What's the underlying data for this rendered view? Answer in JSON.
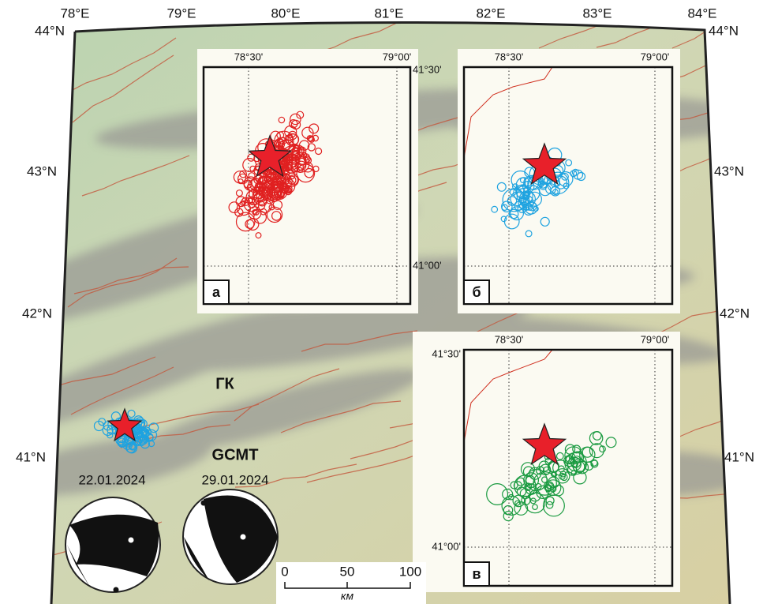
{
  "map": {
    "lon_labels": [
      "78°E",
      "79°E",
      "80°E",
      "81°E",
      "82°E",
      "83°E",
      "84°E"
    ],
    "lat_labels": [
      "44°N",
      "43°N",
      "42°N",
      "41°N"
    ],
    "inset_lon_labels": [
      "78°30'",
      "79°00'"
    ],
    "inset_lat_labels": [
      "41°30'",
      "41°00'"
    ],
    "insets": [
      {
        "letter": "а"
      },
      {
        "letter": "б"
      },
      {
        "letter": "в"
      }
    ],
    "labels": {
      "gk": "ГК",
      "gcmt": "GCMT"
    },
    "dates": [
      "22.01.2024",
      "29.01.2024"
    ],
    "scale": {
      "ticks": [
        0,
        50,
        100
      ],
      "unit": "км"
    }
  }
}
